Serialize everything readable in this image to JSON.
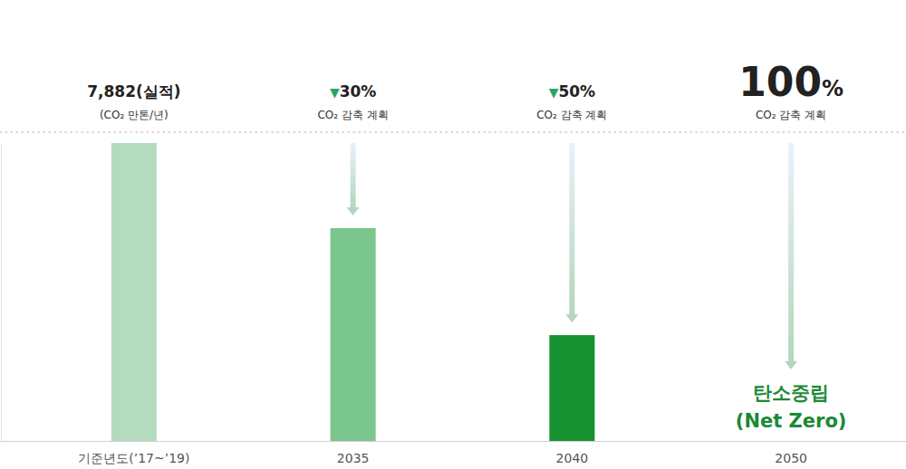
{
  "chart_data": {
    "type": "bar",
    "categories": [
      "기준년도(’17~’19)",
      "2035",
      "2040",
      "2050"
    ],
    "values": [
      7882,
      5630,
      2800,
      0
    ],
    "colors": [
      "#b5dbbf",
      "#7ac68c",
      "#179233",
      "#179233"
    ],
    "ylim": [
      0,
      7882
    ],
    "tick_labels": "x",
    "annotations": [
      {
        "label": "7,882(실적)",
        "note": "(CO₂ 만톤/년)"
      },
      {
        "label": "▼30%",
        "note": "CO₂ 감축 계획"
      },
      {
        "label": "▼50%",
        "note": "CO₂ 감축 계획"
      },
      {
        "label": "100%",
        "note": "CO₂ 감축 계획"
      }
    ],
    "goal_label": [
      "탄소중립",
      "(Net Zero)"
    ]
  }
}
